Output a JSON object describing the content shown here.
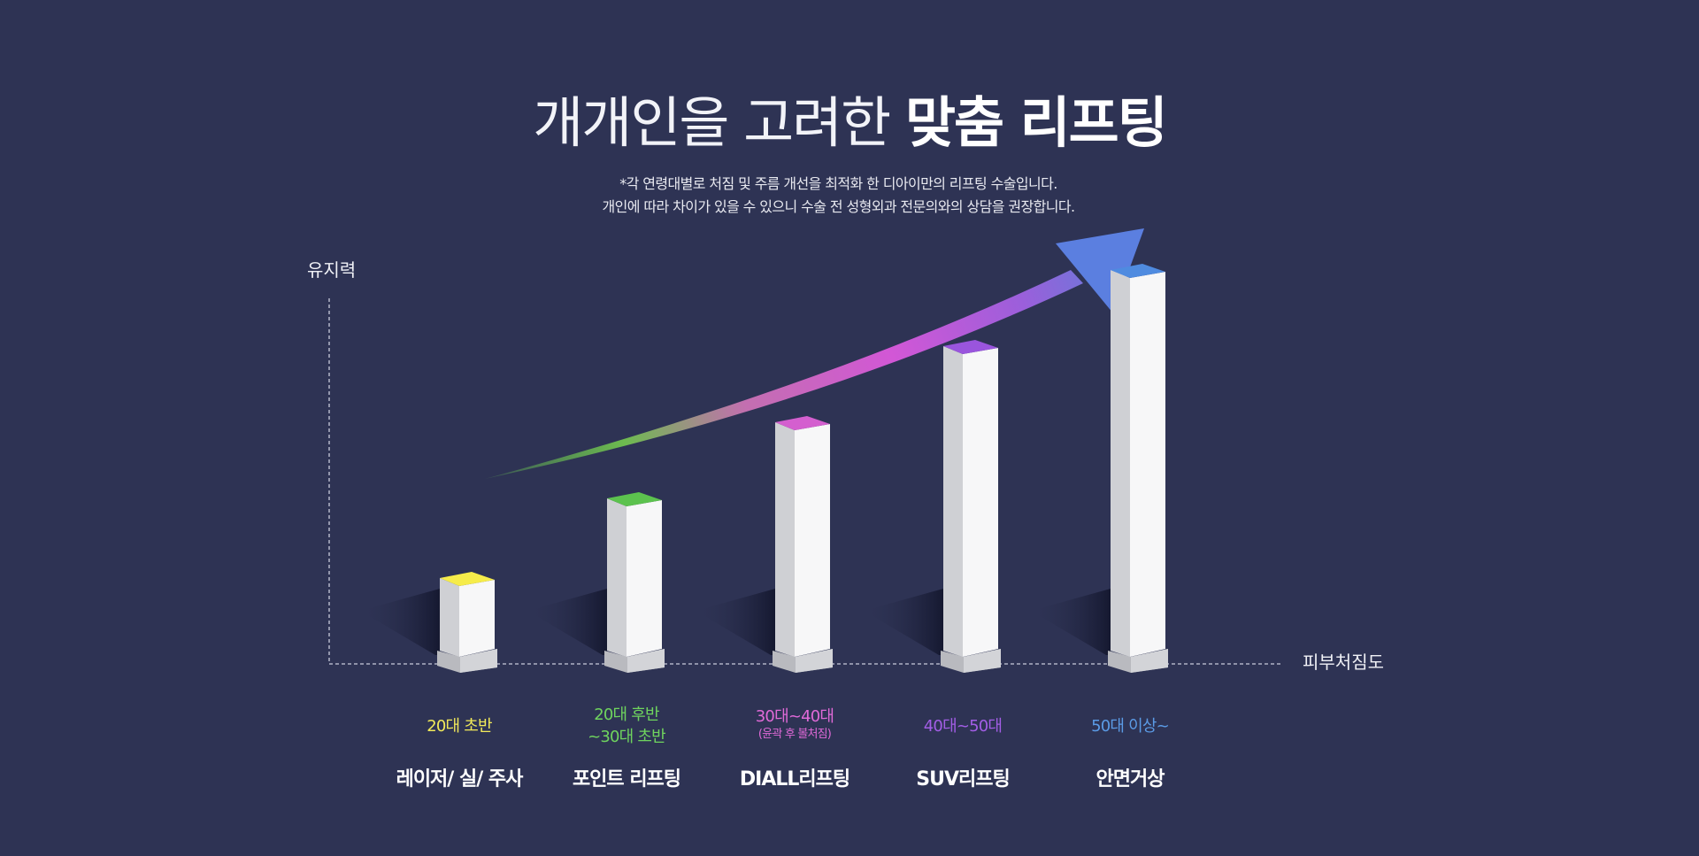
{
  "header": {
    "title_light": "개개인을 고려한",
    "title_bold": "맞춤 리프팅",
    "note_line1": "*각 연령대별로 처짐 및 주름 개선을 최적화 한 디아이만의 리프팅 수술입니다.",
    "note_line2": "개인에 따라 차이가 있을 수 있으니 수술 전 성형외과 전문의와의 상담을 권장합니다."
  },
  "chart_data": {
    "type": "bar",
    "ylabel": "유지력",
    "xlabel": "피부처짐도",
    "grid": false,
    "categories": [
      "레이저/ 실/ 주사",
      "포인트 리프팅",
      "DIALL리프팅",
      "SUV리프팅",
      "안면거상"
    ],
    "age_groups": [
      {
        "line1": "20대 초반",
        "line2": "",
        "sub": ""
      },
      {
        "line1": "20대 후반",
        "line2": "~30대 초반",
        "sub": ""
      },
      {
        "line1": "30대~40대",
        "line2": "",
        "sub": "(윤곽 후 볼처짐)"
      },
      {
        "line1": "40대~50대",
        "line2": "",
        "sub": ""
      },
      {
        "line1": "50대 이상~",
        "line2": "",
        "sub": ""
      }
    ],
    "values": [
      1,
      2,
      3,
      4,
      5
    ],
    "ylim": [
      0,
      6
    ],
    "colors": [
      "#f6ec4a",
      "#5cc24e",
      "#d45fcf",
      "#9a55dd",
      "#4f8be0"
    ],
    "trend_arrow": true
  }
}
